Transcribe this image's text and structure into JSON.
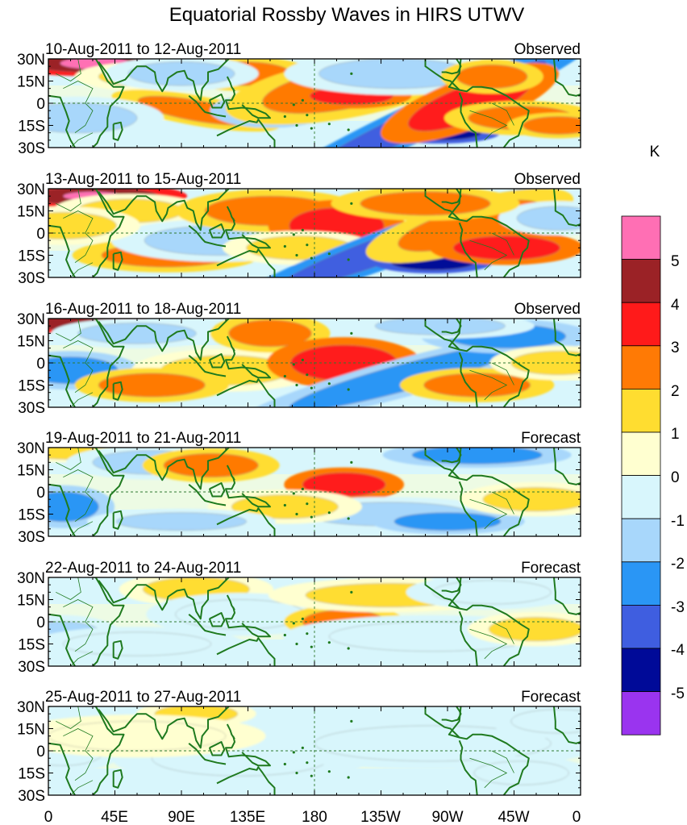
{
  "title": "Equatorial Rossby Waves in HIRS UTWV",
  "colorbar": {
    "unit": "K",
    "levels": [
      "5",
      "4",
      "3",
      "2",
      "1",
      "0",
      "-1",
      "-2",
      "-3",
      "-4",
      "-5"
    ],
    "colors": [
      "#ff6fb4",
      "#9b2226",
      "#ff1a1a",
      "#ff7a05",
      "#ffdd30",
      "#ffffd0",
      "#d8f6fc",
      "#a8d7fb",
      "#2a96f5",
      "#3f5ee0",
      "#000a98",
      "#9a34ef"
    ]
  },
  "axes": {
    "lat_labels": [
      "30N",
      "15N",
      "0",
      "15S",
      "30S"
    ],
    "lon_labels": [
      "0",
      "45E",
      "90E",
      "135E",
      "180",
      "135W",
      "90W",
      "45W",
      "0"
    ]
  },
  "panels": [
    {
      "date_range": "10-Aug-2011 to 12-Aug-2011",
      "kind": "Observed"
    },
    {
      "date_range": "13-Aug-2011 to 15-Aug-2011",
      "kind": "Observed"
    },
    {
      "date_range": "16-Aug-2011 to 18-Aug-2011",
      "kind": "Observed"
    },
    {
      "date_range": "19-Aug-2011 to 21-Aug-2011",
      "kind": "Forecast"
    },
    {
      "date_range": "22-Aug-2011 to 24-Aug-2011",
      "kind": "Forecast"
    },
    {
      "date_range": "25-Aug-2011 to 27-Aug-2011",
      "kind": "Forecast"
    }
  ]
}
